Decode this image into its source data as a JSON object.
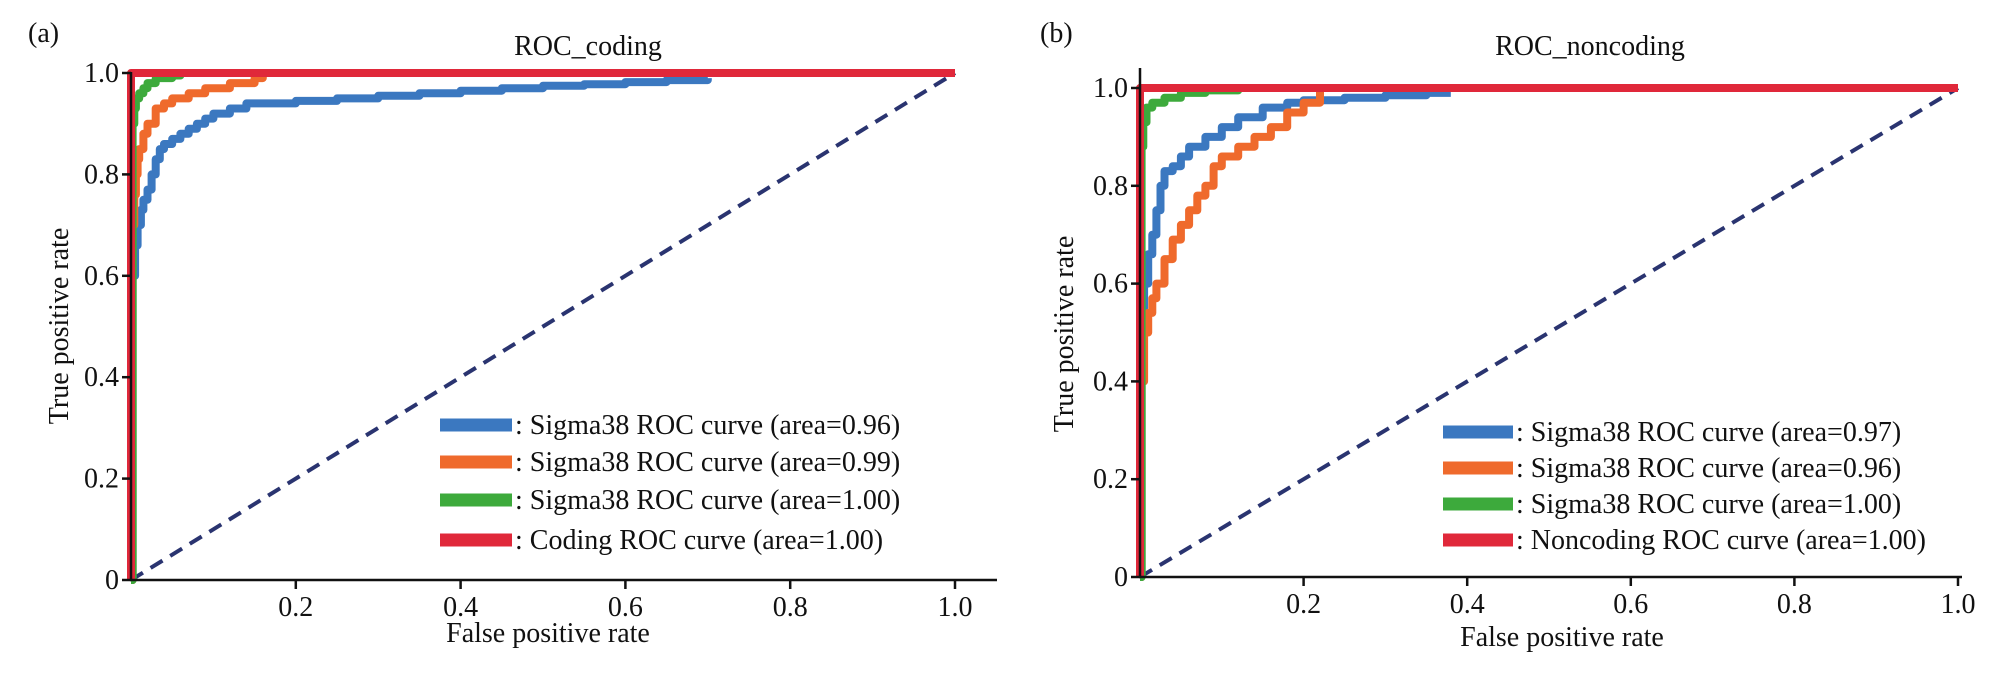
{
  "colors": {
    "blue": "#3b78c0",
    "orange": "#ef6a2c",
    "green": "#3daa3c",
    "red": "#e0283a",
    "navy": "#2a3470",
    "axis": "#111111"
  },
  "chart_data": [
    {
      "type": "line",
      "panel_label": "(a)",
      "title": "ROC_coding",
      "xlabel": "False positive rate",
      "ylabel": "True positive rate",
      "xlim": [
        0,
        1.05
      ],
      "ylim": [
        0,
        1.05
      ],
      "xticks": [
        0.2,
        0.4,
        0.6,
        0.8,
        1.0
      ],
      "xtick_labels": [
        "0.2",
        "0.4",
        "0.6",
        "0.8",
        "1.0"
      ],
      "yticks": [
        0,
        0.2,
        0.4,
        0.6,
        0.8,
        1.0
      ],
      "ytick_labels": [
        "0",
        "0.2",
        "0.4",
        "0.6",
        "0.8",
        "1.0"
      ],
      "grid": false,
      "legend_position": "bottom-right",
      "series": [
        {
          "name": ": Sigma38 ROC curve (area=0.96)",
          "color": "#3b78c0",
          "x": [
            0,
            0.002,
            0.005,
            0.008,
            0.012,
            0.015,
            0.02,
            0.025,
            0.03,
            0.035,
            0.04,
            0.05,
            0.06,
            0.07,
            0.08,
            0.09,
            0.1,
            0.12,
            0.14,
            0.16,
            0.2,
            0.25,
            0.3,
            0.35,
            0.4,
            0.45,
            0.5,
            0.55,
            0.6,
            0.65,
            0.7
          ],
          "y": [
            0,
            0.6,
            0.66,
            0.7,
            0.73,
            0.75,
            0.77,
            0.8,
            0.83,
            0.85,
            0.86,
            0.87,
            0.88,
            0.89,
            0.9,
            0.91,
            0.92,
            0.93,
            0.94,
            0.94,
            0.945,
            0.95,
            0.955,
            0.96,
            0.965,
            0.97,
            0.975,
            0.978,
            0.982,
            0.986,
            0.99
          ]
        },
        {
          "name": ": Sigma38 ROC curve (area=0.99)",
          "color": "#ef6a2c",
          "x": [
            0,
            0.002,
            0.004,
            0.006,
            0.008,
            0.01,
            0.015,
            0.02,
            0.03,
            0.04,
            0.05,
            0.07,
            0.09,
            0.12,
            0.15,
            0.16
          ],
          "y": [
            0,
            0.7,
            0.76,
            0.8,
            0.83,
            0.85,
            0.88,
            0.9,
            0.93,
            0.94,
            0.95,
            0.96,
            0.97,
            0.98,
            0.99,
            1.0
          ]
        },
        {
          "name": ": Sigma38 ROC curve (area=1.00)",
          "color": "#3daa3c",
          "x": [
            0,
            0.002,
            0.004,
            0.006,
            0.01,
            0.015,
            0.02,
            0.03,
            0.05,
            0.06
          ],
          "y": [
            0,
            0.9,
            0.93,
            0.95,
            0.96,
            0.97,
            0.98,
            0.99,
            0.995,
            1.0
          ]
        },
        {
          "name": ": Coding ROC curve (area=1.00)",
          "color": "#e0283a",
          "x": [
            0,
            0,
            1.0
          ],
          "y": [
            0,
            1.0,
            1.0
          ]
        }
      ],
      "reference_line": {
        "x": [
          0,
          1.0
        ],
        "y": [
          0,
          1.0
        ],
        "color": "#2a3470",
        "style": "dashed"
      }
    },
    {
      "type": "line",
      "panel_label": "(b)",
      "title": "ROC_noncoding",
      "xlabel": "False positive rate",
      "ylabel": "True positive rate",
      "xlim": [
        0,
        1.0
      ],
      "ylim": [
        0,
        1.02
      ],
      "xticks": [
        0.2,
        0.4,
        0.6,
        0.8,
        1.0
      ],
      "xtick_labels": [
        "0.2",
        "0.4",
        "0.6",
        "0.8",
        "1.0"
      ],
      "yticks": [
        0,
        0.2,
        0.4,
        0.6,
        0.8,
        1.0
      ],
      "ytick_labels": [
        "0",
        "0.2",
        "0.4",
        "0.6",
        "0.8",
        "1.0"
      ],
      "grid": false,
      "legend_position": "bottom-right",
      "series": [
        {
          "name": ": Sigma38 ROC curve (area=0.97)",
          "color": "#3b78c0",
          "x": [
            0,
            0.002,
            0.005,
            0.01,
            0.015,
            0.02,
            0.025,
            0.03,
            0.04,
            0.05,
            0.06,
            0.08,
            0.1,
            0.12,
            0.15,
            0.18,
            0.2,
            0.25,
            0.3,
            0.35,
            0.38
          ],
          "y": [
            0,
            0.55,
            0.6,
            0.66,
            0.7,
            0.75,
            0.8,
            0.83,
            0.84,
            0.86,
            0.88,
            0.9,
            0.92,
            0.94,
            0.96,
            0.97,
            0.975,
            0.98,
            0.985,
            0.99,
            0.99
          ]
        },
        {
          "name": ": Sigma38 ROC curve (area=0.96)",
          "color": "#ef6a2c",
          "x": [
            0,
            0.002,
            0.005,
            0.01,
            0.015,
            0.02,
            0.03,
            0.04,
            0.05,
            0.06,
            0.07,
            0.08,
            0.09,
            0.1,
            0.12,
            0.14,
            0.16,
            0.18,
            0.2,
            0.22
          ],
          "y": [
            0,
            0.4,
            0.5,
            0.54,
            0.57,
            0.6,
            0.65,
            0.69,
            0.72,
            0.75,
            0.78,
            0.8,
            0.84,
            0.86,
            0.88,
            0.9,
            0.92,
            0.95,
            0.97,
            1.0
          ]
        },
        {
          "name": ": Sigma38 ROC curve (area=1.00)",
          "color": "#3daa3c",
          "x": [
            0,
            0.002,
            0.004,
            0.008,
            0.015,
            0.03,
            0.05,
            0.08,
            0.12
          ],
          "y": [
            0,
            0.88,
            0.93,
            0.96,
            0.97,
            0.98,
            0.99,
            0.995,
            1.0
          ]
        },
        {
          "name": ": Noncoding ROC curve (area=1.00)",
          "color": "#e0283a",
          "x": [
            0,
            0,
            1.0
          ],
          "y": [
            0,
            1.0,
            1.0
          ]
        }
      ],
      "reference_line": {
        "x": [
          0,
          1.0
        ],
        "y": [
          0,
          1.0
        ],
        "color": "#2a3470",
        "style": "dashed"
      }
    }
  ]
}
